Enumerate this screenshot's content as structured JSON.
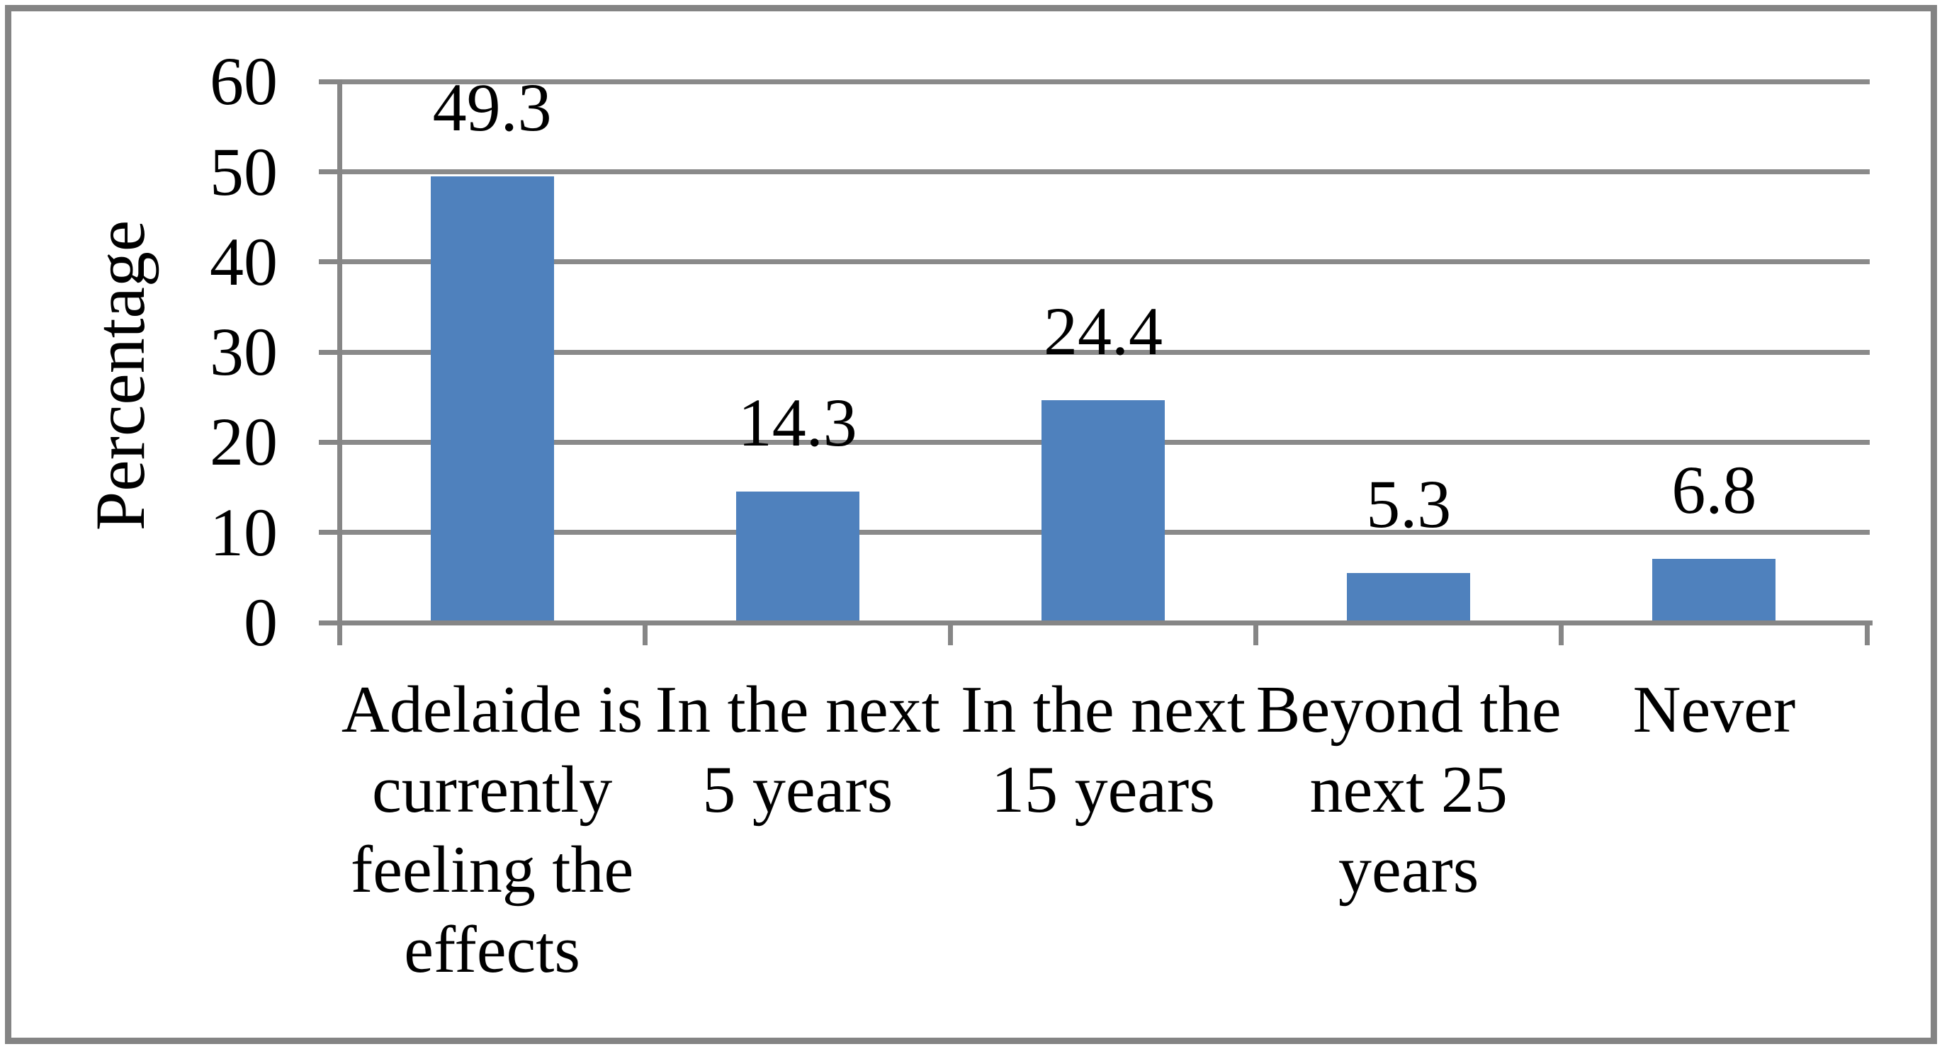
{
  "figure": {
    "background": "#FFFFFF",
    "frame_border_color": "#848484"
  },
  "chart_data": {
    "type": "bar",
    "title": "",
    "xlabel": "",
    "ylabel": "Percentage",
    "legend": "none",
    "grid": "horizontal-major",
    "ylim": [
      0,
      60
    ],
    "yticks": [
      0,
      10,
      20,
      30,
      40,
      50,
      60
    ],
    "categories": [
      "Adelaide is currently feeling the effects",
      "In the next 5 years",
      "In the next 15  years",
      "Beyond the next 25 years",
      "Never"
    ],
    "category_label_lines": [
      [
        "Adelaide is",
        "currently",
        "feeling the",
        "effects"
      ],
      [
        "In the next",
        "5 years"
      ],
      [
        "In the next",
        "15  years"
      ],
      [
        "Beyond the",
        "next 25",
        "years"
      ],
      [
        "Never"
      ]
    ],
    "values": [
      49.3,
      14.3,
      24.4,
      5.3,
      6.8
    ],
    "value_labels": [
      "49.3",
      "14.3",
      "24.4",
      "5.3",
      "6.8"
    ],
    "colors": {
      "bar": "#4F81BD",
      "grid": "#8A8A8A",
      "axis": "#868686",
      "text": "#000000",
      "background": "#FFFFFF"
    }
  }
}
